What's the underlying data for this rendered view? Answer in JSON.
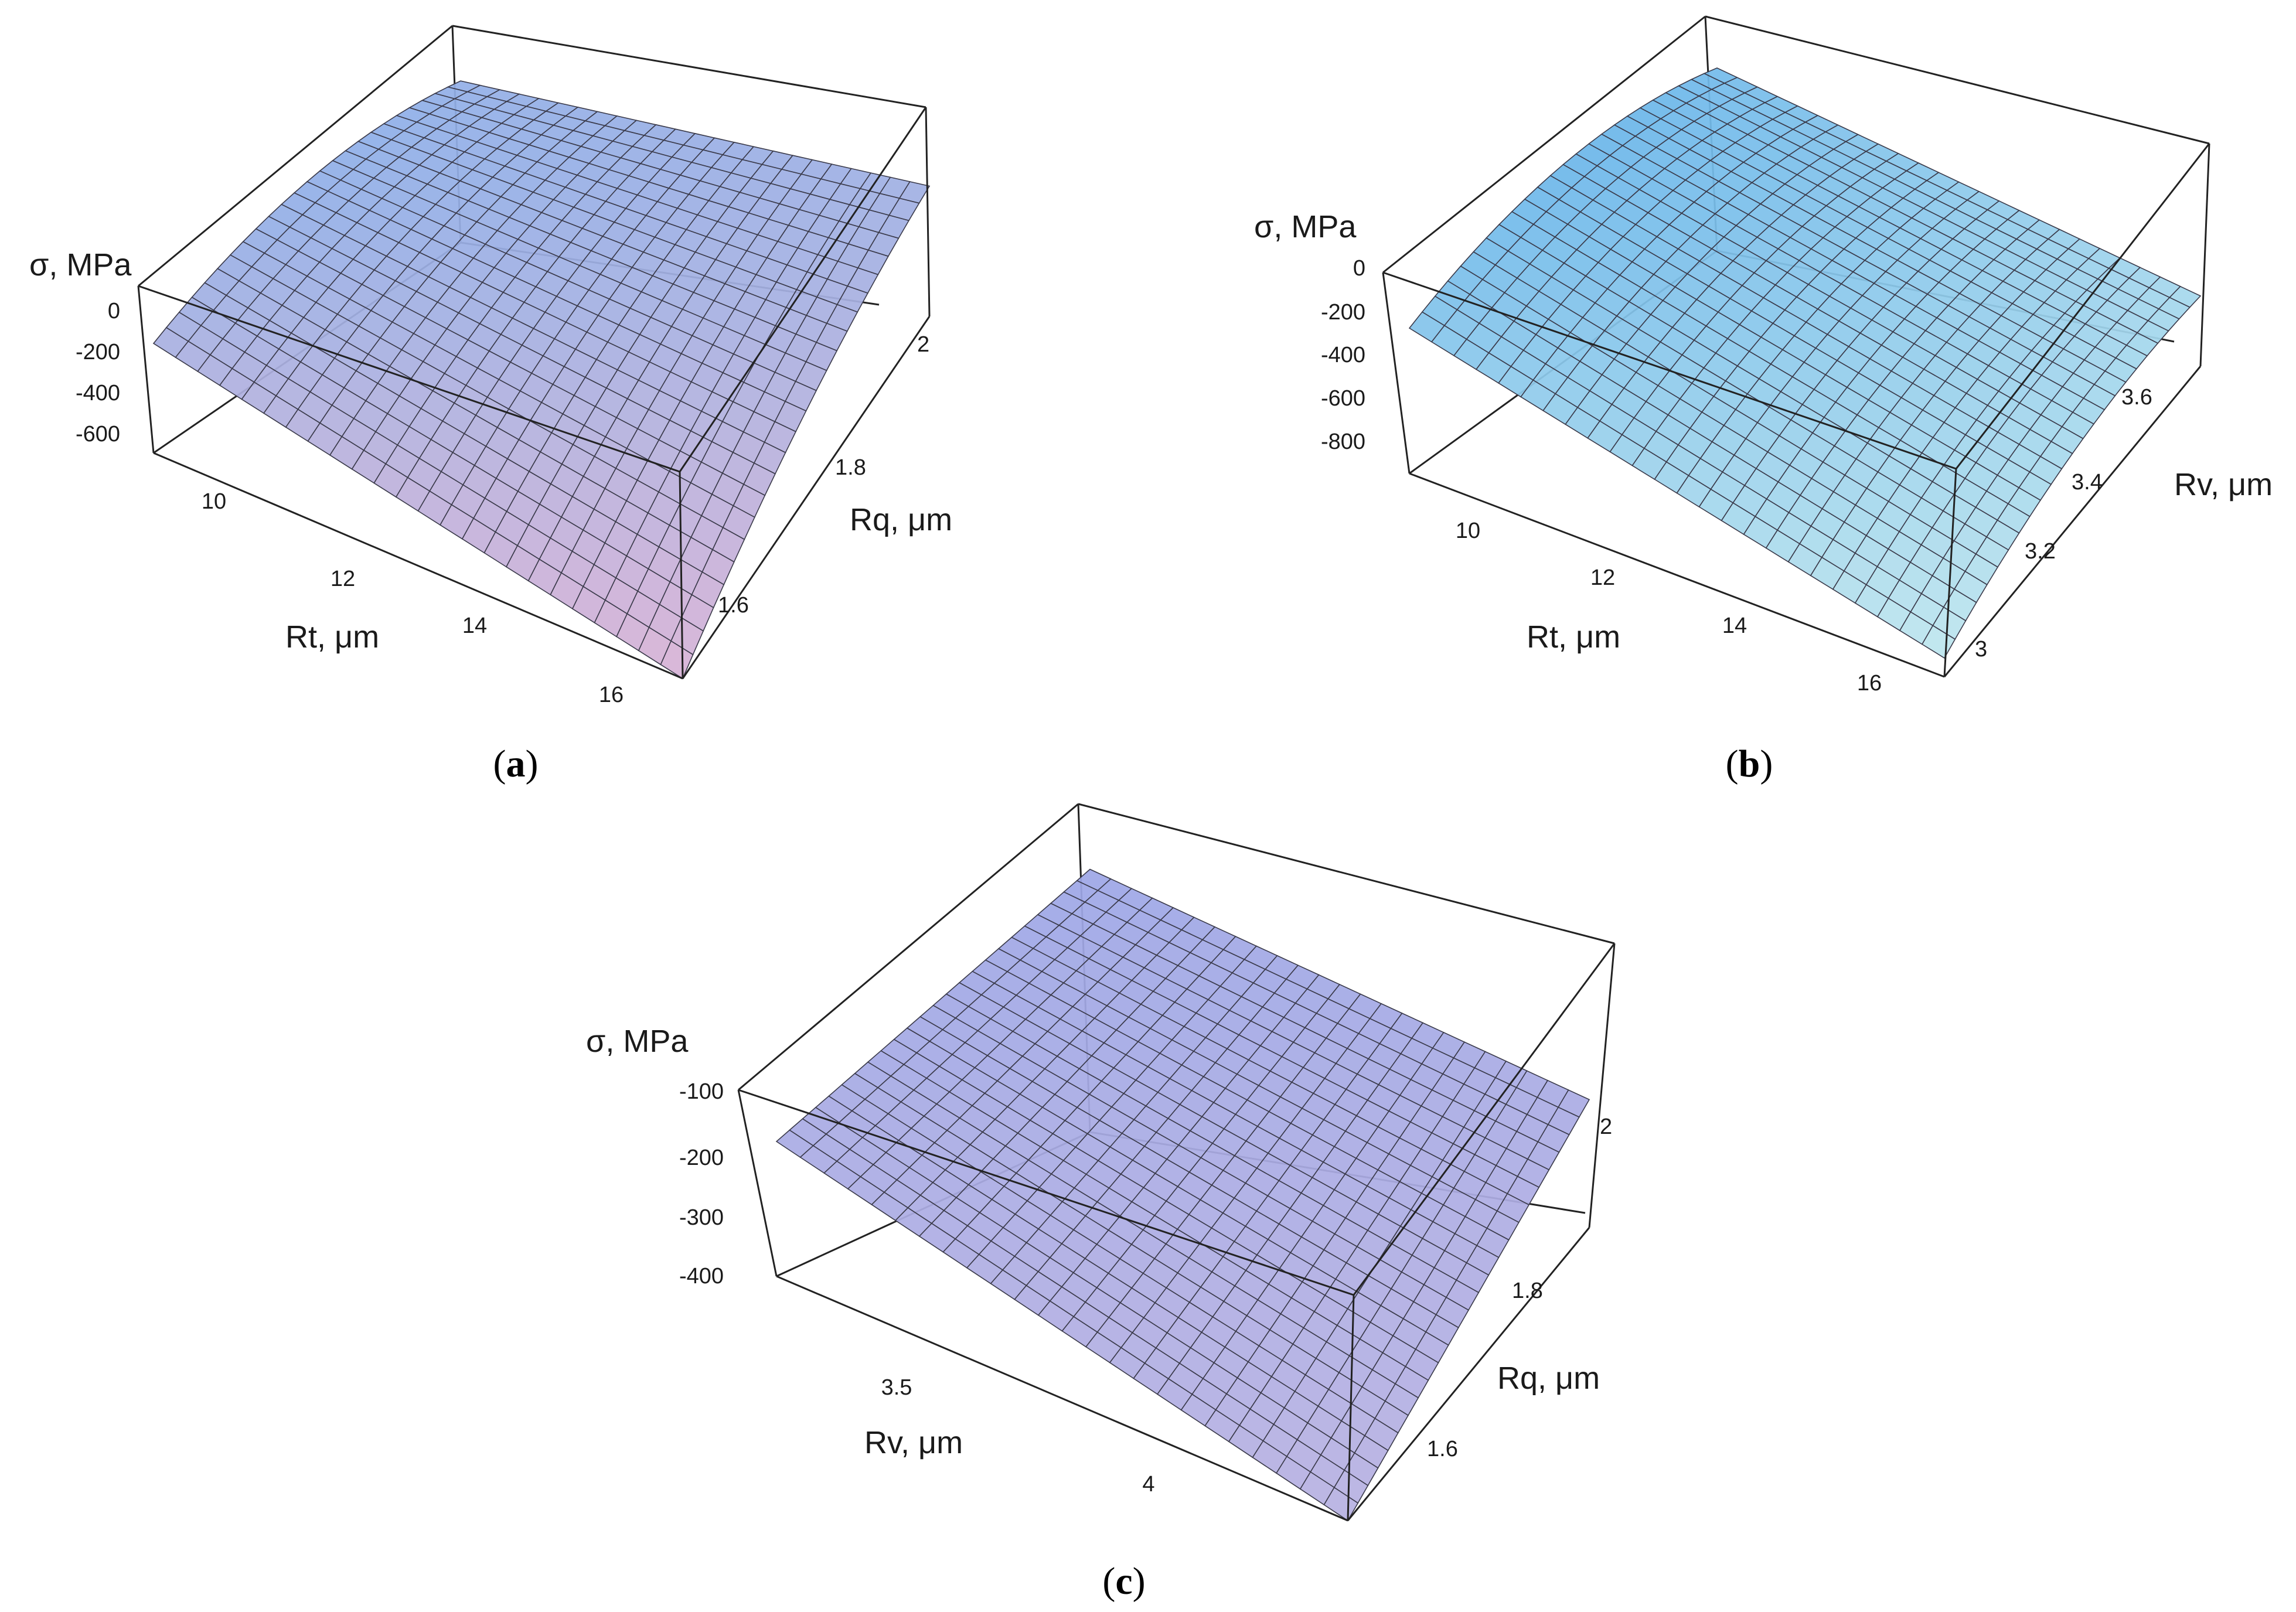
{
  "chart_data": [
    {
      "id": "a",
      "type": "surface3d",
      "caption_open": "(",
      "caption_letter": "a",
      "caption_close": ")",
      "x_label": "Rt, μm",
      "y_label": "Rq, μm",
      "z_label": "σ, MPa",
      "x_range": [
        9,
        16.5
      ],
      "y_range": [
        1.5,
        2.1
      ],
      "z_range": [
        -750,
        50
      ],
      "x_ticks": [
        10,
        12,
        14,
        16
      ],
      "y_ticks": [
        "1.6",
        "1.8",
        "2"
      ],
      "z_ticks": [
        "0",
        "-200",
        "-400",
        "-600"
      ],
      "corner_values": {
        "x_min_y_min": -330,
        "x_max_y_min": -750,
        "x_min_y_max": -130,
        "x_max_y_max": -250
      },
      "grid_on": true,
      "color_low": "#d9b3d5",
      "color_high": "#86aeea"
    },
    {
      "id": "b",
      "type": "surface3d",
      "caption_open": "(",
      "caption_letter": "b",
      "caption_close": ")",
      "x_label": "Rt, μm",
      "y_label": "Rv, μm",
      "z_label": "σ, MPa",
      "x_range": [
        9,
        16.5
      ],
      "y_range": [
        2.9,
        3.75
      ],
      "z_range": [
        -900,
        50
      ],
      "x_ticks": [
        10,
        12,
        14,
        16
      ],
      "y_ticks": [
        "3",
        "3.2",
        "3.4",
        "3.6"
      ],
      "z_ticks": [
        "0",
        "-200",
        "-400",
        "-600",
        "-800"
      ],
      "corner_values": {
        "x_min_y_min": -280,
        "x_max_y_min": -820,
        "x_min_y_max": -120,
        "x_max_y_max": -600
      },
      "grid_on": true,
      "color_low": "#bfe6ee",
      "color_high": "#64b2ea"
    },
    {
      "id": "c",
      "type": "surface3d",
      "caption_open": "(",
      "caption_letter": "c",
      "caption_close": ")",
      "x_label": "Rv, μm",
      "y_label": "Rq, μm",
      "z_label": "σ, MPa",
      "x_range": [
        3.1,
        4.3
      ],
      "y_range": [
        1.5,
        2.1
      ],
      "z_range": [
        -460,
        -60
      ],
      "x_ticks": [
        "3.5",
        "4"
      ],
      "y_ticks": [
        "1.6",
        "1.8",
        "2"
      ],
      "z_ticks": [
        "-100",
        "-200",
        "-300",
        "-400"
      ],
      "corner_values": {
        "x_min_y_min": -260,
        "x_max_y_min": -460,
        "x_min_y_max": -70,
        "x_max_y_max": -270
      },
      "grid_on": true,
      "color_low": "#b8b1e2",
      "color_high": "#9da7e6"
    }
  ]
}
